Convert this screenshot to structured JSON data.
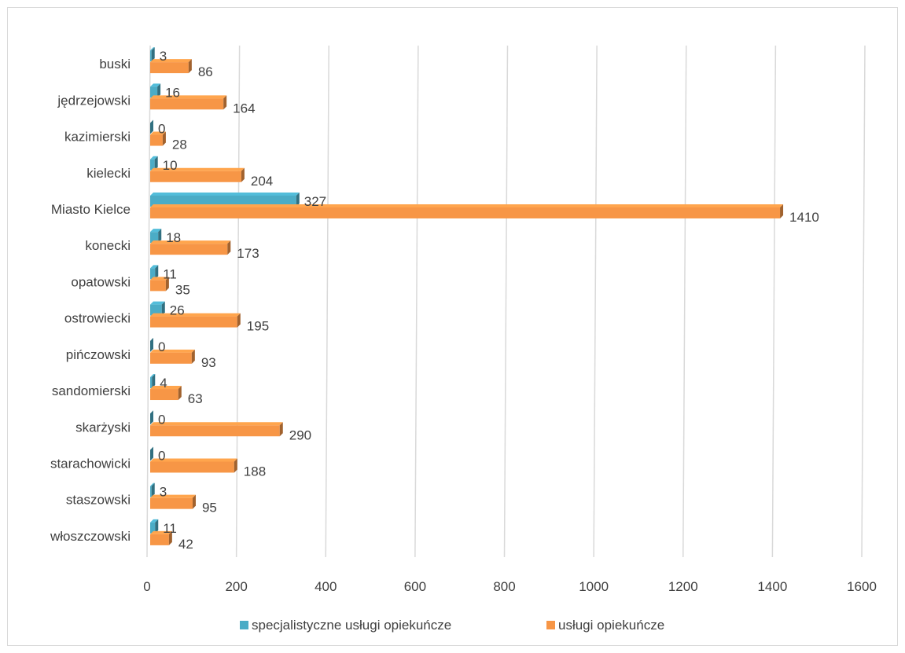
{
  "chart_data": {
    "type": "bar",
    "orientation": "horizontal",
    "categories": [
      "buski",
      "jędrzejowski",
      "kazimierski",
      "kielecki",
      "Miasto Kielce",
      "konecki",
      "opatowski",
      "ostrowiecki",
      "pińczowski",
      "sandomierski",
      "skarżyski",
      "starachowicki",
      "staszowski",
      "włoszczowski"
    ],
    "series": [
      {
        "name": "specjalistyczne usługi opiekuńcze",
        "color": "#4bacc6",
        "values": [
          3,
          16,
          0,
          10,
          327,
          18,
          11,
          26,
          0,
          4,
          0,
          0,
          3,
          11
        ]
      },
      {
        "name": "usługi opiekuńcze",
        "color": "#f79646",
        "values": [
          86,
          164,
          28,
          204,
          1410,
          173,
          35,
          195,
          93,
          63,
          290,
          188,
          95,
          42
        ]
      }
    ],
    "xlim": [
      0,
      1600
    ],
    "xticks": [
      0,
      200,
      400,
      600,
      800,
      1000,
      1200,
      1400,
      1600
    ],
    "grid": true,
    "legend_position": "bottom",
    "title": "",
    "xlabel": "",
    "ylabel": ""
  }
}
